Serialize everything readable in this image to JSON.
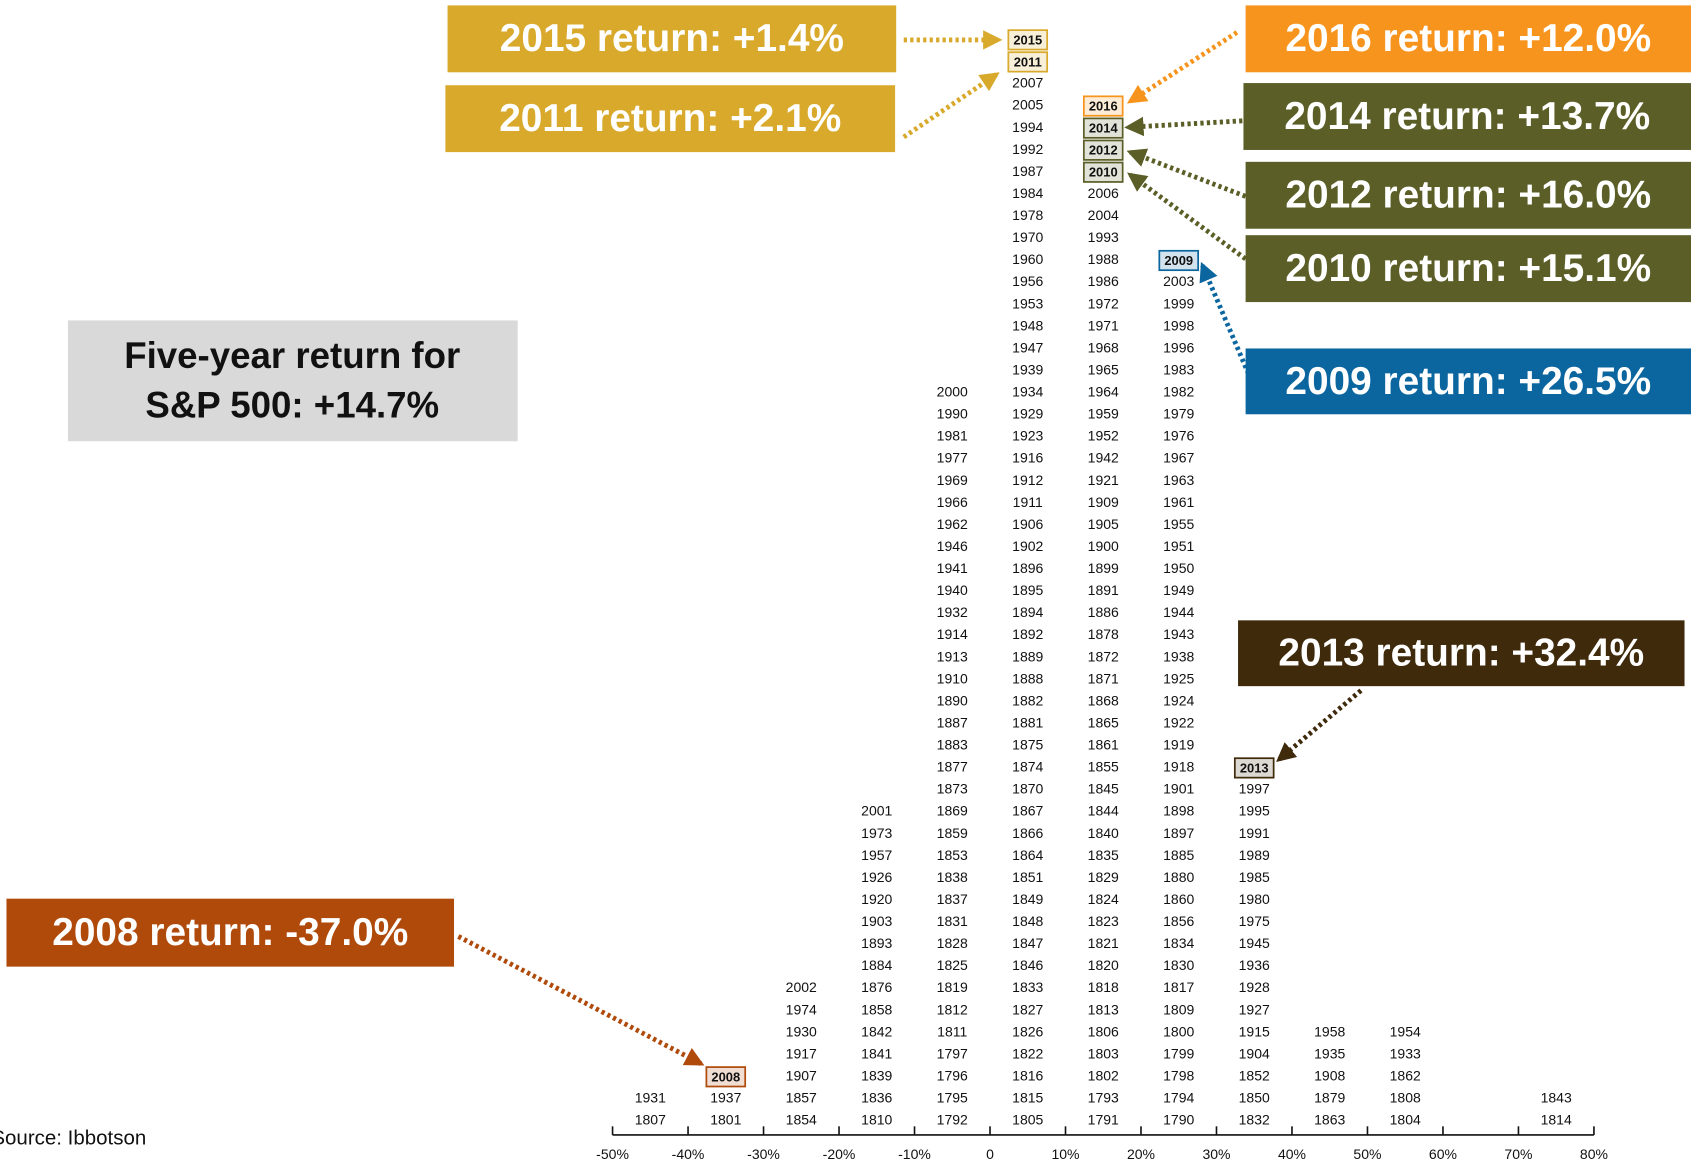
{
  "chart_data": {
    "type": "year-stack",
    "xlim": [
      -50,
      80
    ],
    "xticks": [
      {
        "value": -50,
        "label": "-50%"
      },
      {
        "value": -40,
        "label": "-40%"
      },
      {
        "value": -30,
        "label": "-30%"
      },
      {
        "value": -20,
        "label": "-20%"
      },
      {
        "value": -10,
        "label": "-10%"
      },
      0,
      {
        "value": 10,
        "label": "10%"
      },
      {
        "value": 20,
        "label": "20%"
      },
      {
        "value": 30,
        "label": "30%"
      },
      {
        "value": 40,
        "label": "40%"
      },
      {
        "value": 50,
        "label": "50%"
      },
      {
        "value": 60,
        "label": "60%"
      },
      {
        "value": 70,
        "label": "70%"
      },
      {
        "value": 80,
        "label": "80%"
      }
    ],
    "bins": [
      -50,
      -40,
      -30,
      -20,
      -10,
      0,
      10,
      20,
      30,
      40,
      50,
      60,
      70,
      80
    ],
    "stacks": [
      [
        "1807",
        "1931"
      ],
      [
        "1801",
        "1937",
        {
          "year": "2008",
          "highlight": "#b04a0a"
        }
      ],
      [
        "1854",
        "1857",
        "1907",
        "1917",
        "1930",
        "1974",
        "2002"
      ],
      [
        "1810",
        "1836",
        "1839",
        "1841",
        "1842",
        "1858",
        "1876",
        "1884",
        "1893",
        "1903",
        "1920",
        "1926",
        "1957",
        "1973",
        "2001"
      ],
      [
        "1792",
        "1795",
        "1796",
        "1797",
        "1811",
        "1812",
        "1819",
        "1825",
        "1828",
        "1831",
        "1837",
        "1838",
        "1853",
        "1859",
        "1869",
        "1873",
        "1877",
        "1883",
        "1887",
        "1890",
        "1910",
        "1913",
        "1914",
        "1932",
        "1940",
        "1941",
        "1946",
        "1962",
        "1966",
        "1969",
        "1977",
        "1981",
        "1990",
        "2000"
      ],
      [
        "1805",
        "1815",
        "1816",
        "1822",
        "1826",
        "1827",
        "1833",
        "1846",
        "1847",
        "1848",
        "1849",
        "1851",
        "1864",
        "1866",
        "1867",
        "1870",
        "1874",
        "1875",
        "1881",
        "1882",
        "1888",
        "1889",
        "1892",
        "1894",
        "1895",
        "1896",
        "1902",
        "1906",
        "1911",
        "1912",
        "1916",
        "1923",
        "1929",
        "1934",
        "1939",
        "1947",
        "1948",
        "1953",
        "1956",
        "1960",
        "1970",
        "1978",
        "1984",
        "1987",
        "1992",
        "1994",
        "2005",
        "2007",
        {
          "year": "2011",
          "highlight": "#d9a92c"
        },
        {
          "year": "2015",
          "highlight": "#d9a92c"
        }
      ],
      [
        "1791",
        "1793",
        "1802",
        "1803",
        "1806",
        "1813",
        "1818",
        "1820",
        "1821",
        "1823",
        "1824",
        "1829",
        "1835",
        "1840",
        "1844",
        "1845",
        "1855",
        "1861",
        "1865",
        "1868",
        "1871",
        "1872",
        "1878",
        "1886",
        "1891",
        "1899",
        "1900",
        "1905",
        "1909",
        "1921",
        "1942",
        "1952",
        "1959",
        "1964",
        "1965",
        "1968",
        "1971",
        "1972",
        "1986",
        "1988",
        "1993",
        "2004",
        "2006",
        {
          "year": "2010",
          "highlight": "#5b5e26"
        },
        {
          "year": "2012",
          "highlight": "#5b5e26"
        },
        {
          "year": "2014",
          "highlight": "#5b5e26"
        },
        {
          "year": "2016",
          "highlight": "#f7941d"
        }
      ],
      [
        "1790",
        "1794",
        "1798",
        "1799",
        "1800",
        "1809",
        "1817",
        "1830",
        "1834",
        "1856",
        "1860",
        "1880",
        "1885",
        "1897",
        "1898",
        "1901",
        "1918",
        "1919",
        "1922",
        "1924",
        "1925",
        "1938",
        "1943",
        "1944",
        "1949",
        "1950",
        "1951",
        "1955",
        "1961",
        "1963",
        "1967",
        "1976",
        "1979",
        "1982",
        "1983",
        "1996",
        "1998",
        "1999",
        "2003",
        {
          "year": "2009",
          "highlight": "#0b66a0"
        }
      ],
      [
        "1832",
        "1850",
        "1852",
        "1904",
        "1915",
        "1927",
        "1928",
        "1936",
        "1945",
        "1975",
        "1980",
        "1985",
        "1989",
        "1991",
        "1995",
        "1997",
        {
          "year": "2013",
          "highlight": "#3f2a0c"
        }
      ],
      [
        "1863",
        "1879",
        "1908",
        "1935",
        "1958"
      ],
      [
        "1804",
        "1808",
        "1862",
        "1933",
        "1954"
      ],
      [],
      [
        "1814",
        "1843"
      ]
    ],
    "callouts": [
      {
        "text": "2015 return:  +1.4%",
        "color": "#d9a92c"
      },
      {
        "text": "2011 return:  +2.1%",
        "color": "#d9a92c"
      },
      {
        "text": "2016 return:  +12.0%",
        "color": "#f7941d"
      },
      {
        "text": "2014 return:  +13.7%",
        "color": "#5b5e26"
      },
      {
        "text": "2012 return:  +16.0%",
        "color": "#5b5e26"
      },
      {
        "text": "2010 return:  +15.1%",
        "color": "#5b5e26"
      },
      {
        "text": "2009 return:  +26.5%",
        "color": "#0b66a0"
      },
      {
        "text": "2013 return:  +32.4%",
        "color": "#3f2a0c"
      },
      {
        "text": "2008 return:  -37.0%",
        "color": "#b04a0a"
      }
    ],
    "note": [
      "Five-year return for",
      "S&P 500:  +14.7%"
    ],
    "source": "Source: Ibbotson"
  }
}
